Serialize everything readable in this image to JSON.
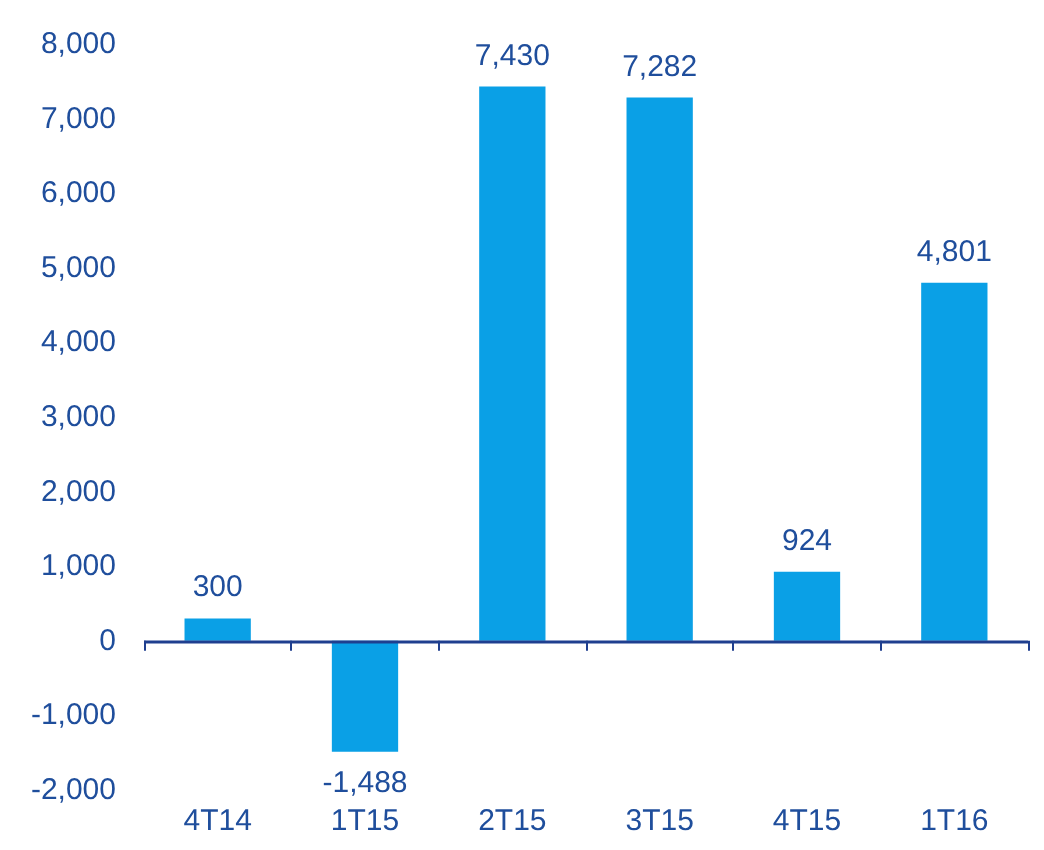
{
  "chart_data": {
    "type": "bar",
    "categories": [
      "4T14",
      "1T15",
      "2T15",
      "3T15",
      "4T15",
      "1T16"
    ],
    "values": [
      300,
      -1488,
      7430,
      7282,
      924,
      4801
    ],
    "color": "#0aa0e6",
    "value_labels": [
      "300",
      "-1,488",
      "7,430",
      "7,282",
      "924",
      "4,801"
    ],
    "ylim": [
      -2000,
      8000
    ],
    "yticks": [
      {
        "value": -2000,
        "label": "-2,000"
      },
      {
        "value": -1000,
        "label": "-1,000"
      },
      0,
      {
        "value": 1000,
        "label": "1,000"
      },
      {
        "value": 2000,
        "label": "2,000"
      },
      {
        "value": 3000,
        "label": "3,000"
      },
      {
        "value": 4000,
        "label": "4,000"
      },
      {
        "value": 5000,
        "label": "5,000"
      },
      {
        "value": 6000,
        "label": "6,000"
      },
      {
        "value": 7000,
        "label": "7,000"
      },
      {
        "value": 8000,
        "label": "8,000"
      }
    ],
    "ref_lines": [
      {
        "axis": "y",
        "value": 0,
        "color": "#1f3f8f"
      }
    ],
    "grid": false
  }
}
